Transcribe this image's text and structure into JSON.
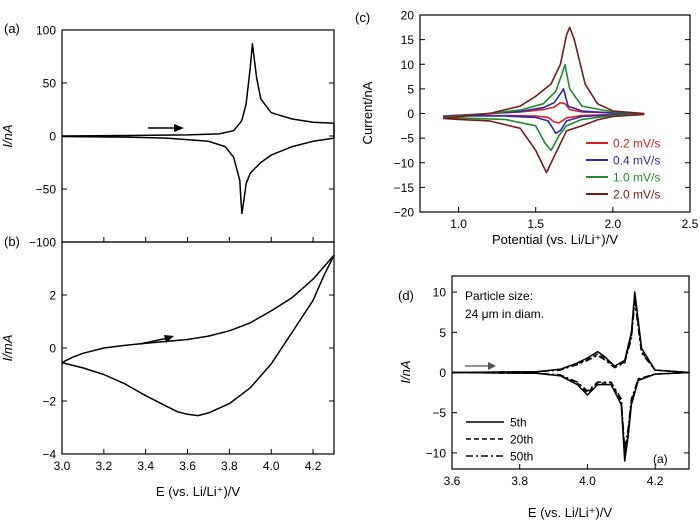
{
  "chart_data": [
    {
      "id": "a",
      "panel_label": "(a)",
      "type": "line",
      "xlabel": "",
      "ylabel": "I/nA",
      "xlim": [
        3.0,
        4.3
      ],
      "ylim": [
        -100,
        100
      ],
      "yticks": [
        "100",
        "50",
        "0",
        "−50",
        "−100"
      ],
      "series": [
        {
          "name": "",
          "x": [
            3.0,
            3.3,
            3.6,
            3.75,
            3.82,
            3.85,
            3.86,
            3.88,
            3.9,
            3.91,
            3.93,
            3.95,
            4.0,
            4.1,
            4.2,
            4.3,
            4.3,
            4.2,
            4.1,
            4.0,
            3.95,
            3.9,
            3.88,
            3.87,
            3.86,
            3.855,
            3.85,
            3.82,
            3.78,
            3.7,
            3.5,
            3.3,
            3.0
          ],
          "y": [
            0,
            0.5,
            1,
            2,
            5,
            12,
            15,
            30,
            65,
            87,
            55,
            35,
            22,
            16,
            13,
            12,
            -2,
            -5,
            -10,
            -18,
            -25,
            -35,
            -45,
            -60,
            -73,
            -60,
            -42,
            -20,
            -10,
            -5,
            -2,
            -1,
            -0.5
          ]
        }
      ]
    },
    {
      "id": "b",
      "panel_label": "(b)",
      "type": "line",
      "xlabel": "E (vs. Li/Li⁺)/V",
      "ylabel": "I/mA",
      "xlim": [
        3.0,
        4.3
      ],
      "ylim": [
        -4,
        4
      ],
      "xticks": [
        "3.0",
        "3.2",
        "3.4",
        "3.6",
        "3.8",
        "4.0",
        "4.2"
      ],
      "yticks": [
        "2",
        "0",
        "−2",
        "−4"
      ],
      "series": [
        {
          "name": "",
          "x": [
            3.0,
            3.05,
            3.1,
            3.2,
            3.3,
            3.4,
            3.5,
            3.6,
            3.7,
            3.8,
            3.9,
            4.0,
            4.1,
            4.2,
            4.3,
            4.25,
            4.2,
            4.1,
            4.0,
            3.9,
            3.8,
            3.7,
            3.65,
            3.6,
            3.55,
            3.5,
            3.4,
            3.3,
            3.2,
            3.1,
            3.0
          ],
          "y": [
            -0.55,
            -0.35,
            -0.2,
            0.0,
            0.1,
            0.18,
            0.25,
            0.32,
            0.45,
            0.65,
            0.95,
            1.4,
            1.9,
            2.6,
            3.5,
            2.7,
            1.8,
            0.6,
            -0.6,
            -1.5,
            -2.1,
            -2.45,
            -2.55,
            -2.5,
            -2.4,
            -2.2,
            -1.8,
            -1.35,
            -1.0,
            -0.75,
            -0.55
          ]
        }
      ]
    },
    {
      "id": "c",
      "panel_label": "(c)",
      "type": "line",
      "xlabel": "Potential (vs. Li/Li⁺)/V",
      "ylabel": "Current/nA",
      "xlim": [
        0.75,
        2.5
      ],
      "ylim": [
        -20,
        20
      ],
      "xticks": [
        "1.0",
        "1.5",
        "2.0",
        "2.5"
      ],
      "yticks": [
        "20",
        "15",
        "10",
        "5",
        "0",
        "−5",
        "−10",
        "−15",
        "−20"
      ],
      "legend": "lower-right",
      "series": [
        {
          "name": "0.2 mV/s",
          "color": "#e02020",
          "x": [
            0.9,
            1.2,
            1.4,
            1.55,
            1.62,
            1.66,
            1.69,
            1.72,
            1.8,
            2.0,
            2.2,
            2.2,
            2.0,
            1.8,
            1.7,
            1.65,
            1.62,
            1.58,
            1.5,
            1.3,
            1.0,
            0.9
          ],
          "y": [
            -0.5,
            0.0,
            0.3,
            0.8,
            1.3,
            2.2,
            2.0,
            0.8,
            0.3,
            0.1,
            0.0,
            -0.1,
            -0.2,
            -0.4,
            -0.9,
            -1.9,
            -1.7,
            -0.8,
            -0.5,
            -0.4,
            -0.4,
            -0.5
          ]
        },
        {
          "name": "0.4 mV/s",
          "color": "#2828b0",
          "x": [
            0.9,
            1.2,
            1.4,
            1.55,
            1.62,
            1.66,
            1.68,
            1.71,
            1.8,
            2.0,
            2.2,
            2.2,
            2.0,
            1.8,
            1.7,
            1.66,
            1.63,
            1.58,
            1.5,
            1.3,
            1.0,
            0.9
          ],
          "y": [
            -0.6,
            0.0,
            0.4,
            1.2,
            2.2,
            4.0,
            5.0,
            1.5,
            0.5,
            0.1,
            0.0,
            -0.1,
            -0.3,
            -0.6,
            -1.5,
            -3.5,
            -4.0,
            -1.5,
            -0.8,
            -0.5,
            -0.5,
            -0.6
          ]
        },
        {
          "name": "1.0 mV/s",
          "color": "#1e8c2a",
          "x": [
            0.9,
            1.2,
            1.4,
            1.55,
            1.63,
            1.67,
            1.69,
            1.72,
            1.8,
            2.0,
            2.2,
            2.2,
            2.0,
            1.8,
            1.7,
            1.65,
            1.6,
            1.56,
            1.5,
            1.3,
            1.0,
            0.9
          ],
          "y": [
            -0.8,
            0.0,
            0.7,
            2.0,
            4.5,
            8.0,
            9.9,
            5.0,
            1.5,
            0.3,
            0.0,
            -0.1,
            -0.4,
            -1.2,
            -2.5,
            -4.5,
            -7.5,
            -6.0,
            -2.5,
            -1.2,
            -0.9,
            -0.8
          ]
        },
        {
          "name": "2.0 mV/s",
          "color": "#7a1a1a",
          "x": [
            0.9,
            1.2,
            1.4,
            1.5,
            1.6,
            1.66,
            1.7,
            1.72,
            1.75,
            1.82,
            1.9,
            2.0,
            2.2,
            2.2,
            2.0,
            1.9,
            1.8,
            1.7,
            1.6,
            1.57,
            1.5,
            1.4,
            1.2,
            1.0,
            0.9
          ],
          "y": [
            -1.0,
            0.0,
            1.5,
            3.5,
            6.0,
            10.0,
            16.0,
            17.5,
            15.0,
            6.0,
            2.0,
            0.5,
            0.0,
            -0.2,
            -0.6,
            -1.3,
            -2.5,
            -3.5,
            -10.0,
            -12.0,
            -7.5,
            -3.0,
            -1.5,
            -1.2,
            -1.0
          ]
        }
      ]
    },
    {
      "id": "d",
      "panel_label": "(d)",
      "inner_label": "(a)",
      "annotation": [
        "Particle size:",
        "24 μm in diam."
      ],
      "type": "line",
      "xlabel": "E (vs. Li/Li⁺)/V",
      "ylabel": "I/nA",
      "xlim": [
        3.6,
        4.3
      ],
      "ylim": [
        -12,
        12
      ],
      "xticks": [
        "3.6",
        "3.8",
        "4.0",
        "4.2"
      ],
      "yticks": [
        "10",
        "5",
        "0",
        "−5",
        "−10"
      ],
      "legend": "lower-left",
      "series": [
        {
          "name": "5th",
          "dash": "",
          "x": [
            3.6,
            3.85,
            3.92,
            3.97,
            4.0,
            4.03,
            4.05,
            4.08,
            4.11,
            4.13,
            4.14,
            4.16,
            4.2,
            4.3,
            4.3,
            4.2,
            4.15,
            4.13,
            4.12,
            4.11,
            4.1,
            4.07,
            4.03,
            4.0,
            3.97,
            3.92,
            3.85,
            3.6
          ],
          "y": [
            0,
            0.1,
            0.4,
            1.2,
            1.8,
            2.6,
            2.0,
            0.8,
            1.5,
            5.0,
            10.0,
            3.0,
            0.3,
            0.0,
            0.0,
            -0.2,
            -1.0,
            -4.0,
            -8.0,
            -11.0,
            -4.0,
            -1.5,
            -1.5,
            -2.8,
            -1.5,
            -0.4,
            -0.1,
            0.0
          ]
        },
        {
          "name": "20th",
          "dash": "5,3",
          "x": [
            3.6,
            3.85,
            3.92,
            3.97,
            4.0,
            4.03,
            4.05,
            4.08,
            4.11,
            4.13,
            4.14,
            4.16,
            4.2,
            4.3,
            4.3,
            4.2,
            4.15,
            4.13,
            4.12,
            4.11,
            4.1,
            4.07,
            4.03,
            4.0,
            3.97,
            3.92,
            3.85,
            3.6
          ],
          "y": [
            0,
            0.1,
            0.4,
            1.1,
            1.6,
            2.3,
            1.8,
            0.7,
            1.3,
            4.6,
            9.4,
            2.6,
            0.3,
            0.0,
            0.0,
            -0.2,
            -0.9,
            -3.6,
            -7.5,
            -10.3,
            -3.6,
            -1.3,
            -1.3,
            -2.5,
            -1.3,
            -0.4,
            -0.1,
            0.0
          ]
        },
        {
          "name": "50th",
          "dash": "7,3,2,3",
          "x": [
            3.6,
            3.85,
            3.92,
            3.97,
            4.0,
            4.03,
            4.05,
            4.08,
            4.11,
            4.13,
            4.14,
            4.16,
            4.2,
            4.3,
            4.3,
            4.2,
            4.15,
            4.13,
            4.12,
            4.11,
            4.1,
            4.07,
            4.03,
            4.0,
            3.97,
            3.92,
            3.85,
            3.6
          ],
          "y": [
            0,
            0.1,
            0.3,
            1.0,
            1.5,
            2.1,
            1.6,
            0.6,
            1.2,
            4.2,
            8.8,
            2.4,
            0.3,
            0.0,
            0.0,
            -0.2,
            -0.8,
            -3.3,
            -7.0,
            -9.6,
            -3.3,
            -1.2,
            -1.2,
            -2.3,
            -1.2,
            -0.3,
            -0.1,
            0.0
          ]
        }
      ]
    }
  ]
}
